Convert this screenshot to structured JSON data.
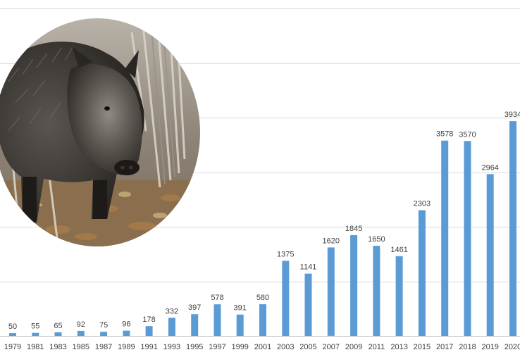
{
  "chart_data": {
    "type": "bar",
    "title": "",
    "xlabel": "",
    "ylabel": "",
    "categories": [
      "1979",
      "1981",
      "1983",
      "1985",
      "1987",
      "1989",
      "1991",
      "1993",
      "1995",
      "1997",
      "1999",
      "2001",
      "2003",
      "2005",
      "2007",
      "2009",
      "2011",
      "2013",
      "2015",
      "2017",
      "2018",
      "2019",
      "2020"
    ],
    "values": [
      50,
      55,
      65,
      92,
      75,
      96,
      178,
      332,
      397,
      578,
      391,
      580,
      1375,
      1141,
      1620,
      1845,
      1650,
      1461,
      2303,
      3578,
      3570,
      2964,
      3934
    ],
    "ylim": [
      0,
      6000
    ],
    "grid": true,
    "legend": "none",
    "bar_color": "#5B9BD5"
  },
  "image": {
    "subject": "wild-boar-photo"
  }
}
